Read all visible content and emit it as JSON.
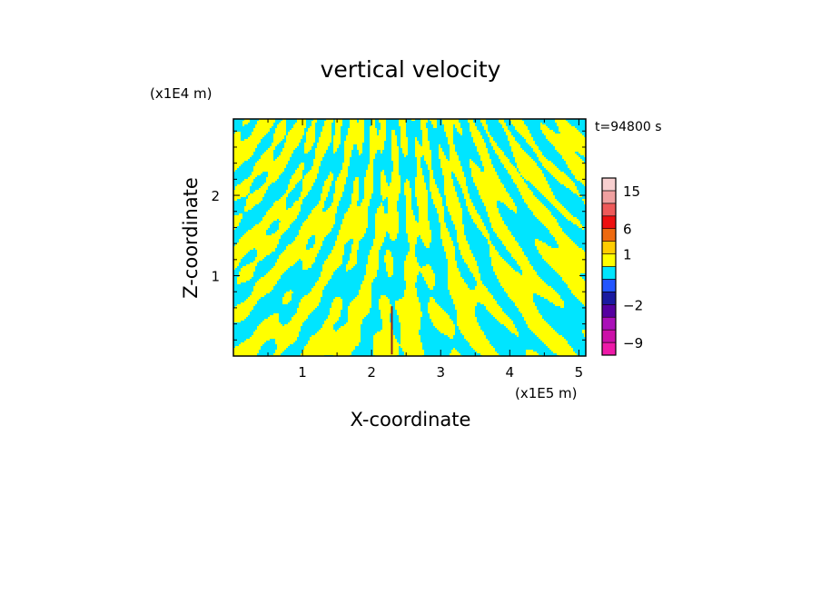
{
  "chart_data": {
    "type": "heatmap",
    "title": "vertical velocity",
    "xlabel": "X-coordinate",
    "ylabel": "Z-coordinate",
    "x_scale_label": "(x1E5 m)",
    "y_scale_label": "(x1E4 m)",
    "time_label": "t=94800 s",
    "xlim": [
      0,
      5.1
    ],
    "ylim": [
      0,
      2.95
    ],
    "x_ticks": [
      1,
      2,
      3,
      4,
      5
    ],
    "x_tick_labels": [
      "1",
      "2",
      "3",
      "4",
      "5"
    ],
    "y_ticks": [
      1,
      2
    ],
    "y_tick_labels": [
      "1",
      "2"
    ],
    "dominant_colors": {
      "positive": "#ffff00",
      "negative": "#00e5ff",
      "plume": "#8b2020"
    },
    "colorbar": {
      "levels": [
        -12,
        -9,
        -6,
        -4,
        -2,
        -1,
        0,
        0.5,
        1,
        3,
        6,
        9,
        12,
        15,
        20
      ],
      "colors": [
        "#ee1aa8",
        "#cc10a8",
        "#aa10b8",
        "#5500a0",
        "#1a1aa0",
        "#2255ff",
        "#00e5ff",
        "#ffff00",
        "#ffcc00",
        "#ee6a10",
        "#ee1010",
        "#ee5a5a",
        "#f0a0a0",
        "#f8d0d0",
        "#fff2f2"
      ],
      "labeled_ticks": [
        15,
        6,
        1,
        -2,
        -9
      ],
      "labels": [
        "15",
        "6",
        "1",
        "−2",
        "−9"
      ]
    }
  }
}
